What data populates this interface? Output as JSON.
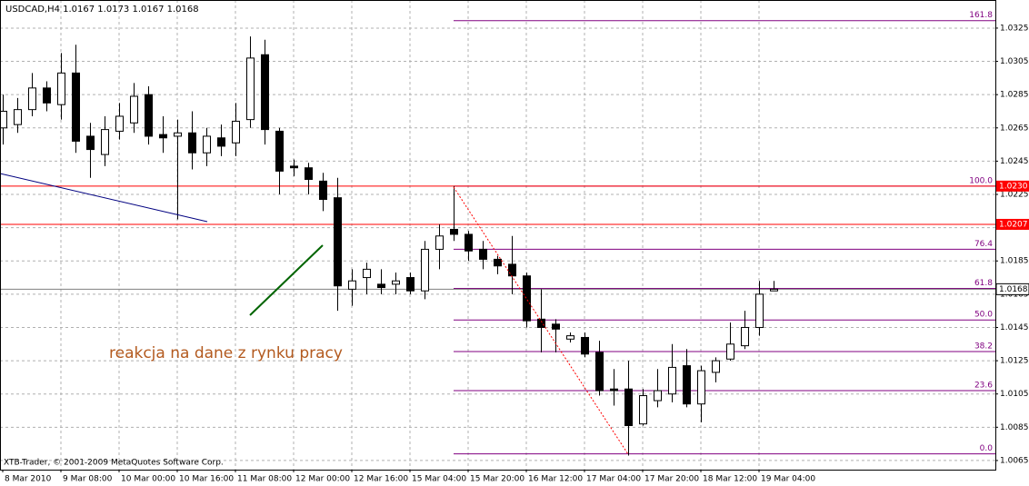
{
  "chart_data": {
    "type": "candlestick",
    "title": "USDCAD,H4  1.0167 1.0173 1.0167 1.0168",
    "categories": [
      "8 Mar 2010",
      null,
      null,
      null,
      "9 Mar 08:00",
      null,
      null,
      null,
      "10 Mar 00:00",
      null,
      null,
      null,
      "10 Mar 16:00",
      null,
      null,
      null,
      "11 Mar 08:00",
      null,
      null,
      null,
      "12 Mar 00:00",
      null,
      null,
      null,
      "12 Mar 16:00",
      null,
      null,
      null,
      "15 Mar 04:00",
      null,
      null,
      null,
      "15 Mar 20:00",
      null,
      null,
      null,
      "16 Mar 12:00",
      null,
      null,
      null,
      "17 Mar 04:00",
      null,
      null,
      null,
      "17 Mar 20:00",
      null,
      null,
      null,
      "18 Mar 12:00",
      null,
      null,
      null,
      "19 Mar 04:00",
      null
    ],
    "open": [
      1.0265,
      1.0267,
      1.0276,
      1.0289,
      1.0279,
      1.0298,
      1.026,
      1.0249,
      1.0263,
      1.0268,
      1.0285,
      1.0261,
      1.026,
      1.0262,
      1.025,
      1.0259,
      1.0256,
      1.027,
      1.0309,
      1.0263,
      1.0242,
      1.0241,
      1.0233,
      1.0223,
      1.0168,
      1.0175,
      1.0171,
      1.0171,
      1.0175,
      1.0167,
      1.0192,
      1.0204,
      1.0201,
      1.0192,
      1.0186,
      1.0183,
      1.0176,
      1.015,
      1.0147,
      1.0138,
      1.0139,
      1.013,
      1.0108,
      1.0108,
      1.0087,
      1.0101,
      1.0105,
      1.0122,
      1.0099,
      1.0118,
      1.0126,
      1.0134,
      1.0145,
      1.0167
    ],
    "high": [
      1.0285,
      1.0283,
      1.0298,
      1.0293,
      1.031,
      1.0315,
      1.0268,
      1.0272,
      1.028,
      1.0292,
      1.029,
      1.0272,
      1.027,
      1.0275,
      1.0265,
      1.0267,
      1.028,
      1.032,
      1.0318,
      1.0265,
      1.0246,
      1.0244,
      1.0238,
      1.0235,
      1.018,
      1.0184,
      1.018,
      1.0178,
      1.0178,
      1.0197,
      1.0207,
      1.023,
      1.0203,
      1.0197,
      1.0188,
      1.02,
      1.0178,
      1.0168,
      1.015,
      1.0142,
      1.0142,
      1.0137,
      1.012,
      1.0125,
      1.0108,
      1.012,
      1.0135,
      1.0132,
      1.0122,
      1.0127,
      1.0148,
      1.0155,
      1.0173,
      1.0173
    ],
    "low": [
      1.0255,
      1.0262,
      1.0272,
      1.0275,
      1.027,
      1.025,
      1.0235,
      1.0242,
      1.0258,
      1.0262,
      1.0255,
      1.025,
      1.021,
      1.024,
      1.0242,
      1.0248,
      1.0248,
      1.0265,
      1.0255,
      1.0225,
      1.0236,
      1.0225,
      1.0215,
      1.0155,
      1.0158,
      1.0165,
      1.0165,
      1.0165,
      1.0165,
      1.0162,
      1.018,
      1.0197,
      1.0185,
      1.018,
      1.0177,
      1.0165,
      1.0145,
      1.013,
      1.013,
      1.0136,
      1.0127,
      1.0104,
      1.0098,
      1.0068,
      1.0086,
      1.0097,
      1.01,
      1.0097,
      1.0088,
      1.0112,
      1.0125,
      1.0132,
      1.014,
      1.0167
    ],
    "close": [
      1.0275,
      1.0276,
      1.0289,
      1.028,
      1.0298,
      1.0257,
      1.0252,
      1.0264,
      1.0272,
      1.0284,
      1.026,
      1.0259,
      1.0262,
      1.025,
      1.026,
      1.0254,
      1.0269,
      1.0307,
      1.0264,
      1.0239,
      1.0241,
      1.0234,
      1.0222,
      1.017,
      1.0173,
      1.018,
      1.0169,
      1.0173,
      1.0167,
      1.0192,
      1.02,
      1.0201,
      1.0191,
      1.0186,
      1.0182,
      1.0176,
      1.0149,
      1.0145,
      1.0144,
      1.014,
      1.0129,
      1.0107,
      1.0107,
      1.0086,
      1.0104,
      1.0107,
      1.0121,
      1.0099,
      1.0119,
      1.0125,
      1.0135,
      1.0145,
      1.0165,
      1.0168
    ],
    "colors": {
      "up": "#ffffff",
      "down": "#000000",
      "outline": "#000000"
    },
    "ylim": [
      1.00595,
      1.03419
    ],
    "yticks": [
      1.0065,
      1.0085,
      1.0105,
      1.0125,
      1.0145,
      1.0165,
      1.0185,
      1.0205,
      1.0225,
      1.0245,
      1.0265,
      1.0285,
      1.0305,
      1.0325
    ],
    "grid": true,
    "lines": [
      {
        "value": 1.023,
        "label": "1.0230",
        "color": "#ff0000"
      },
      {
        "value": 1.0207,
        "label": "1.0207",
        "color": "#ff0000"
      }
    ],
    "last_price": 1.0168,
    "fibonacci": {
      "low": 1.0069,
      "high": 1.023,
      "color": "#800080",
      "levels": [
        {
          "value": 0,
          "label": "0.0"
        },
        23.6,
        38.2,
        {
          "value": 50,
          "label": "50.0"
        },
        61.8,
        76.4,
        {
          "value": 100,
          "label": "100.0"
        },
        161.8
      ]
    },
    "annotation": "reakcja na dane z rynku pracy",
    "copyright": "XTB-Trader, © 2001-2009 MetaQuotes Software Corp."
  }
}
